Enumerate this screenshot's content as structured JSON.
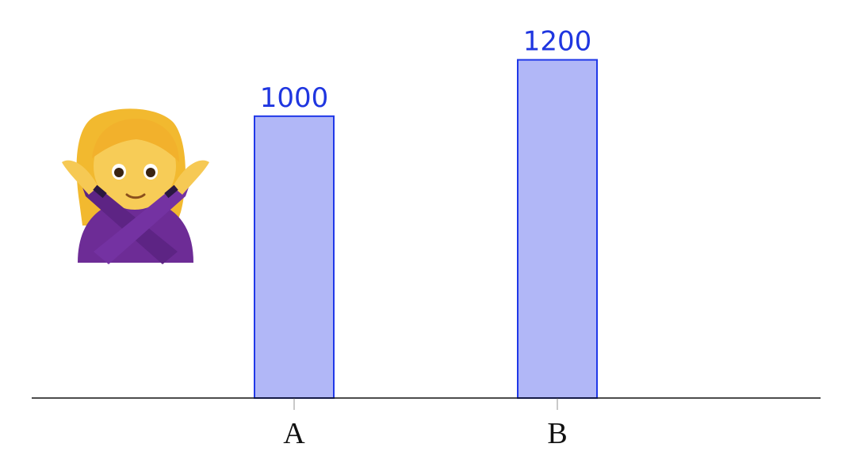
{
  "chart_data": {
    "type": "bar",
    "categories": [
      "A",
      "B"
    ],
    "values": [
      1000,
      1200
    ],
    "title": "",
    "xlabel": "",
    "ylabel": "",
    "ylim": [
      0,
      1300
    ],
    "grid": false,
    "legend": "none",
    "data_labels": [
      "1000",
      "1200"
    ]
  },
  "colors": {
    "bar_fill": "#b1b7f7",
    "bar_stroke": "#2038e8",
    "label_text": "#1f36e0",
    "axis": "#111111",
    "tick": "#b7b7b7",
    "tick_text": "#111111"
  },
  "decoration": {
    "icon": "person-gesturing-no-icon"
  }
}
